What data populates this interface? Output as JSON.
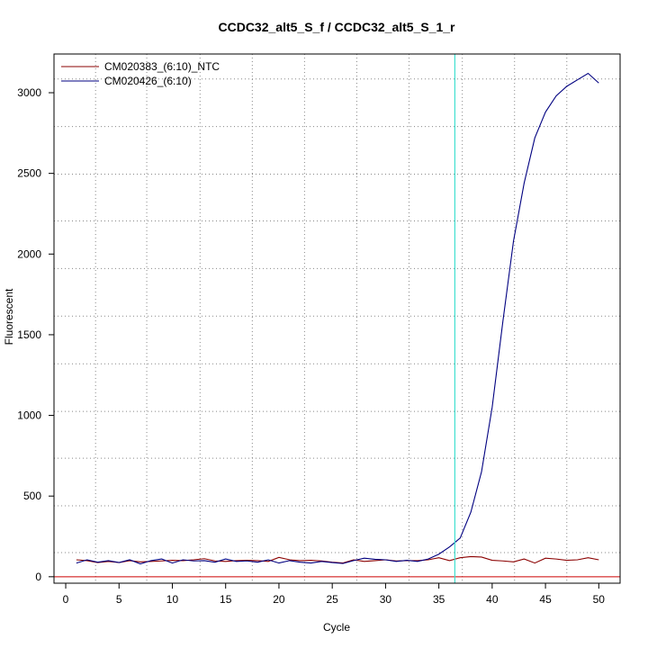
{
  "colors": {
    "ntc": "#8b0000",
    "sample": "#000080",
    "threshold": "#cc0000",
    "cycle_marker": "#40e0d0",
    "grid": "#888888"
  },
  "chart_data": {
    "type": "line",
    "title": "CCDC32_alt5_S_f / CCDC32_alt5_S_1_r",
    "xlabel": "Cycle",
    "ylabel": "Fluorescent",
    "xlim": [
      -1.1,
      52.0
    ],
    "ylim": [
      -40,
      3240
    ],
    "x_ticks": [
      0,
      5,
      10,
      15,
      20,
      25,
      30,
      35,
      40,
      45,
      50
    ],
    "y_ticks": [
      0,
      500,
      1000,
      1500,
      2000,
      2500,
      3000
    ],
    "x_grid": [
      2.8,
      7.6,
      12.6,
      17.5,
      22.4,
      27.3,
      32.2,
      37.2,
      42.1,
      47.0
    ],
    "y_grid": [
      150,
      440,
      735,
      1025,
      1320,
      1615,
      1910,
      2205,
      2495,
      2790,
      3085
    ],
    "threshold_y": 0,
    "cycle_marker_x": 36.5,
    "legend_position": "top-left",
    "series": [
      {
        "name": "CM020383_(6:10)_NTC",
        "color_key": "ntc",
        "x": [
          1,
          2,
          3,
          4,
          5,
          6,
          7,
          8,
          9,
          10,
          11,
          12,
          13,
          14,
          15,
          16,
          17,
          18,
          19,
          20,
          21,
          22,
          23,
          24,
          25,
          26,
          27,
          28,
          29,
          30,
          31,
          32,
          33,
          34,
          35,
          36,
          37,
          38,
          39,
          40,
          41,
          42,
          43,
          44,
          45,
          46,
          47,
          48,
          49,
          50
        ],
        "values": [
          105,
          100,
          88,
          95,
          88,
          100,
          92,
          95,
          98,
          102,
          100,
          105,
          112,
          98,
          95,
          100,
          102,
          100,
          95,
          120,
          105,
          100,
          102,
          98,
          90,
          85,
          105,
          95,
          100,
          105,
          98,
          100,
          100,
          105,
          118,
          100,
          118,
          125,
          122,
          102,
          98,
          92,
          110,
          85,
          115,
          110,
          102,
          105,
          118,
          105
        ]
      },
      {
        "name": "CM020426_(6:10)",
        "color_key": "sample",
        "x": [
          1,
          2,
          3,
          4,
          5,
          6,
          7,
          8,
          9,
          10,
          11,
          12,
          13,
          14,
          15,
          16,
          17,
          18,
          19,
          20,
          21,
          22,
          23,
          24,
          25,
          26,
          27,
          28,
          29,
          30,
          31,
          32,
          33,
          34,
          35,
          36,
          37,
          38,
          39,
          40,
          41,
          42,
          43,
          44,
          45,
          46,
          47,
          48,
          49,
          50
        ],
        "values": [
          85,
          105,
          90,
          100,
          88,
          105,
          80,
          100,
          110,
          85,
          105,
          98,
          100,
          90,
          110,
          95,
          98,
          90,
          105,
          85,
          100,
          90,
          85,
          95,
          88,
          82,
          100,
          115,
          108,
          105,
          95,
          102,
          95,
          110,
          140,
          185,
          240,
          400,
          650,
          1050,
          1580,
          2080,
          2440,
          2720,
          2880,
          2980,
          3040,
          3080,
          3120,
          3060
        ]
      }
    ]
  }
}
